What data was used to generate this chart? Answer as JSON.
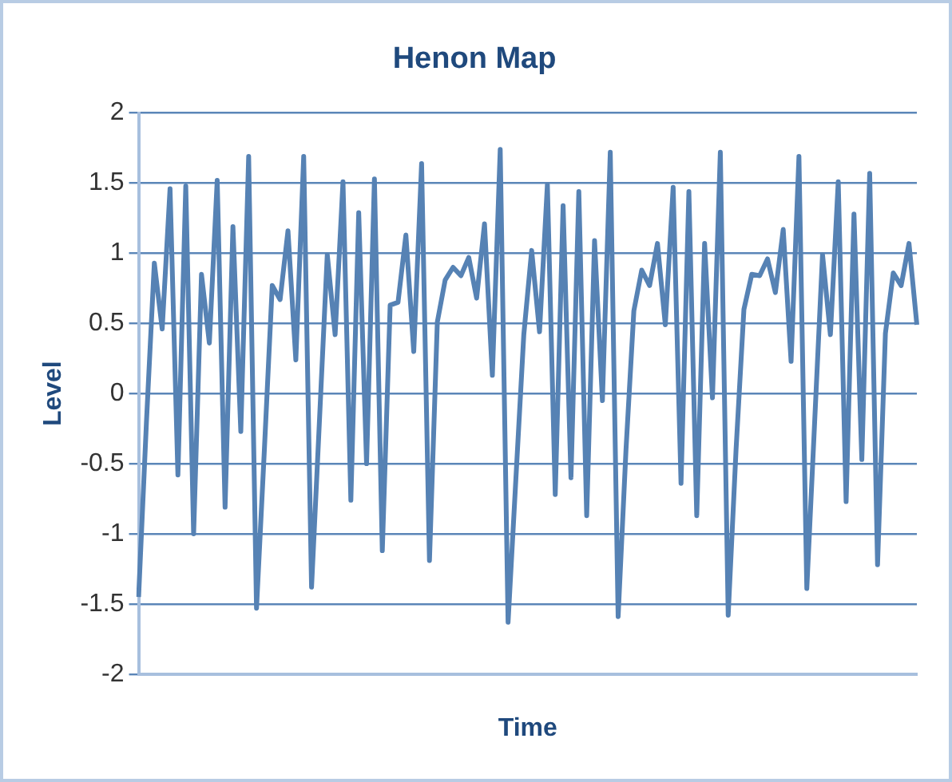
{
  "chart_data": {
    "type": "line",
    "title": "Henon Map",
    "xlabel": "Time",
    "ylabel": "Level",
    "categories": [
      null,
      null,
      null,
      null,
      null,
      null,
      null,
      null,
      null,
      null,
      null,
      null,
      null,
      null,
      null,
      null,
      null,
      null,
      null,
      null,
      null,
      null,
      null,
      null,
      null,
      null,
      null,
      null,
      null,
      null,
      null,
      null,
      null,
      null,
      null,
      null,
      null,
      null,
      null,
      null,
      null,
      null,
      null,
      null,
      null,
      null,
      null,
      null,
      null,
      null,
      null,
      null,
      null,
      null,
      null,
      null,
      null,
      null,
      null,
      null,
      null,
      null,
      null,
      null,
      null,
      null,
      null,
      null,
      null,
      null,
      null,
      null,
      null,
      null,
      null,
      null,
      null,
      null,
      null,
      null,
      null,
      null,
      null,
      null,
      null,
      null,
      null,
      null,
      null,
      null,
      null,
      null,
      null,
      null,
      null,
      null,
      null,
      null,
      null,
      null
    ],
    "series": [
      {
        "color": "#5682b4",
        "values": [
          -1.45,
          -0.2,
          0.93,
          0.46,
          1.46,
          -0.58,
          1.48,
          -1.0,
          0.85,
          0.36,
          1.52,
          -0.81,
          1.19,
          -0.27,
          1.69,
          -1.53,
          -0.4,
          0.77,
          0.67,
          1.16,
          0.24,
          1.69,
          -1.38,
          -0.2,
          0.99,
          0.42,
          1.51,
          -0.76,
          1.29,
          -0.5,
          1.53,
          -1.12,
          0.63,
          0.65,
          1.13,
          0.3,
          1.64,
          -1.19,
          0.51,
          0.81,
          0.9,
          0.84,
          0.97,
          0.68,
          1.21,
          0.13,
          1.74,
          -1.63,
          -0.6,
          0.42,
          1.02,
          0.44,
          1.49,
          -0.72,
          1.34,
          -0.6,
          1.44,
          -0.87,
          1.09,
          -0.05,
          1.72,
          -1.59,
          -0.4,
          0.59,
          0.88,
          0.77,
          1.07,
          0.49,
          1.47,
          -0.64,
          1.44,
          -0.87,
          1.07,
          -0.03,
          1.72,
          -1.58,
          -0.4,
          0.6,
          0.85,
          0.84,
          0.96,
          0.72,
          1.17,
          0.23,
          1.69,
          -1.39,
          -0.2,
          0.99,
          0.42,
          1.51,
          -0.77,
          1.28,
          -0.47,
          1.57,
          -1.22,
          0.43,
          0.86,
          0.77,
          1.07,
          0.49
        ]
      }
    ],
    "ylim": [
      -2,
      2
    ],
    "yticks": [
      -2,
      -1.5,
      -1,
      -0.5,
      0,
      0.5,
      1,
      1.5,
      2
    ],
    "grid": "y",
    "legend": false,
    "marker": "none",
    "line_style": "solid"
  }
}
